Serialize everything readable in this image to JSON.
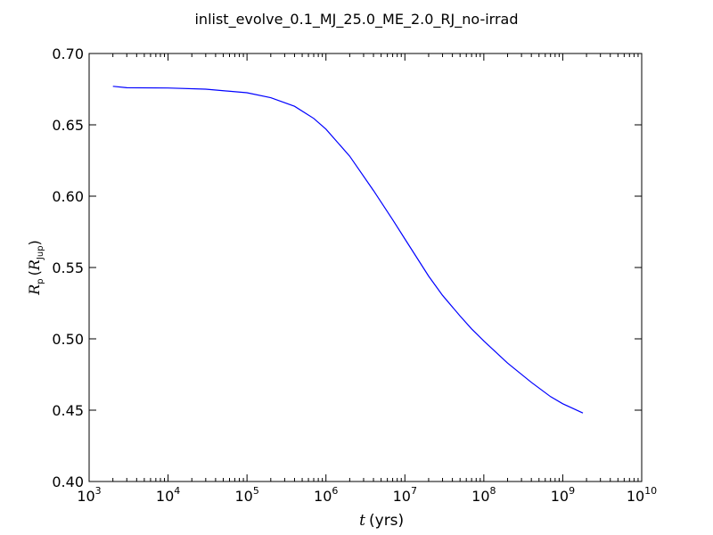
{
  "figure": {
    "title": "inlist_evolve_0.1_MJ_25.0_ME_2.0_RJ_no-irrad"
  },
  "chart_data": {
    "type": "line",
    "title": "inlist_evolve_0.1_MJ_25.0_ME_2.0_RJ_no-irrad",
    "xlabel": {
      "symbol": "t",
      "unit": "(yrs)"
    },
    "ylabel": {
      "symbol": "R",
      "subscript": "p",
      "unit_symbol": "R",
      "unit_subscript": "Jup"
    },
    "xscale": "log",
    "xlim": [
      1000,
      10000000000
    ],
    "ylim": [
      0.4,
      0.7
    ],
    "grid": false,
    "legend": "none",
    "x_ticks": [
      {
        "base": "10",
        "exp": "3",
        "value": 1000
      },
      {
        "base": "10",
        "exp": "4",
        "value": 10000
      },
      {
        "base": "10",
        "exp": "5",
        "value": 100000
      },
      {
        "base": "10",
        "exp": "6",
        "value": 1000000
      },
      {
        "base": "10",
        "exp": "7",
        "value": 10000000
      },
      {
        "base": "10",
        "exp": "8",
        "value": 100000000
      },
      {
        "base": "10",
        "exp": "9",
        "value": 1000000000
      },
      {
        "base": "10",
        "exp": "10",
        "value": 10000000000
      }
    ],
    "y_ticks": [
      "0.40",
      "0.45",
      "0.50",
      "0.55",
      "0.60",
      "0.65",
      "0.70"
    ],
    "series": [
      {
        "color": "#0000ff",
        "x": [
          2000,
          3000,
          10000,
          30000,
          100000,
          200000,
          400000,
          700000,
          1000000,
          2000000,
          4000000,
          7000000,
          10000000,
          20000000,
          30000000,
          50000000,
          70000000,
          100000000,
          200000000,
          400000000,
          700000000,
          1000000000,
          1800000000
        ],
        "y": [
          0.677,
          0.676,
          0.6758,
          0.675,
          0.6725,
          0.669,
          0.663,
          0.6545,
          0.647,
          0.628,
          0.604,
          0.5835,
          0.57,
          0.544,
          0.5305,
          0.516,
          0.507,
          0.4985,
          0.483,
          0.4695,
          0.4595,
          0.4545,
          0.448
        ]
      }
    ]
  }
}
